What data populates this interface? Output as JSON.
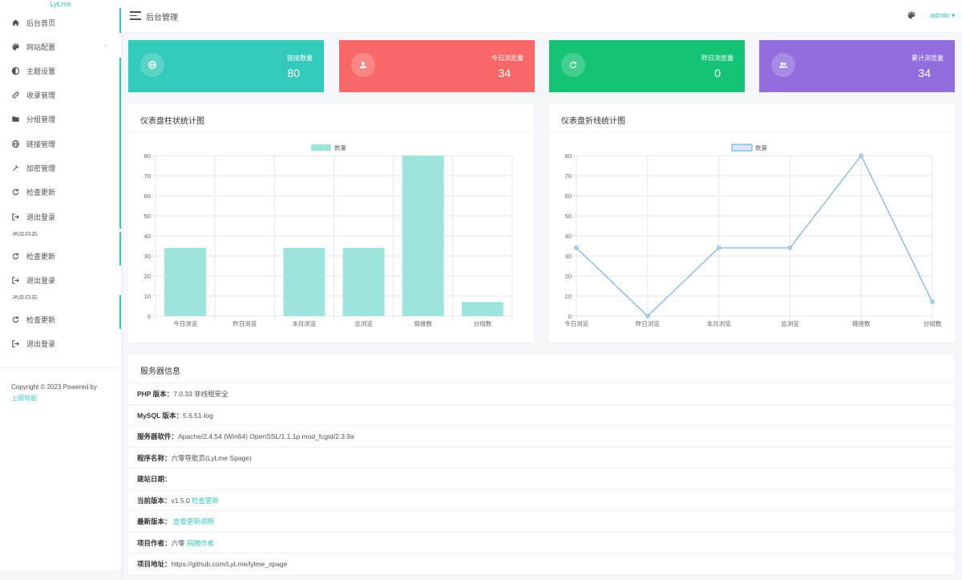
{
  "sidebar": {
    "logo": "LyLme",
    "items": [
      {
        "label": "后台首页",
        "icon": "home-icon"
      },
      {
        "label": "网站配置",
        "icon": "palette-icon",
        "caret": "›"
      },
      {
        "label": "主题设置",
        "icon": "contrast-icon"
      },
      {
        "label": "收录管理",
        "icon": "link-icon"
      },
      {
        "label": "分组管理",
        "icon": "folder-icon"
      },
      {
        "label": "链接管理",
        "icon": "globe-icon"
      },
      {
        "label": "加密管理",
        "icon": "wrench-icon"
      },
      {
        "label": "检查更新",
        "icon": "refresh-icon"
      },
      {
        "label": "退出登录",
        "icon": "logout-icon"
      },
      {
        "label": "检查更新",
        "icon": "refresh-icon"
      },
      {
        "label": "退出登录",
        "icon": "logout-icon"
      },
      {
        "label": "检查更新",
        "icon": "refresh-icon"
      },
      {
        "label": "退出登录",
        "icon": "logout-icon"
      }
    ],
    "copyright_text": "Copyright © 2023 Powered by",
    "copyright_link": "上网导航"
  },
  "header": {
    "title": "后台管理",
    "user": "admin ▾"
  },
  "stats": [
    {
      "label": "链接数量",
      "value": "80",
      "color": "#33cabb",
      "icon": "globe-icon"
    },
    {
      "label": "今日浏览量",
      "value": "34",
      "color": "#f96868",
      "icon": "user-icon"
    },
    {
      "label": "昨日浏览量",
      "value": "0",
      "color": "#15c377",
      "icon": "refresh-icon"
    },
    {
      "label": "累计浏览量",
      "value": "34",
      "color": "#926dde",
      "icon": "users-icon"
    }
  ],
  "bar_card": {
    "title": "仪表盘柱状统计图"
  },
  "line_card": {
    "title": "仪表盘折线统计图"
  },
  "chart_data": [
    {
      "type": "bar",
      "legend": "数量",
      "categories": [
        "今日浏览",
        "昨日浏览",
        "本月浏览",
        "总浏览",
        "链接数",
        "分组数"
      ],
      "values": [
        34,
        0,
        34,
        34,
        80,
        7
      ],
      "ylim": [
        0,
        80
      ],
      "yticks": [
        0,
        10,
        20,
        30,
        40,
        50,
        60,
        70,
        80
      ],
      "color": "#9de4dd"
    },
    {
      "type": "line",
      "legend": "数量",
      "categories": [
        "今日浏览",
        "昨日浏览",
        "本月浏览",
        "总浏览",
        "链接数",
        "分组数"
      ],
      "values": [
        34,
        0,
        34,
        34,
        80,
        7
      ],
      "ylim": [
        0,
        80
      ],
      "yticks": [
        0,
        10,
        20,
        30,
        40,
        50,
        60,
        70,
        80
      ],
      "color": "#5fa4e0"
    }
  ],
  "server": {
    "title": "服务器信息",
    "rows": [
      {
        "label": "PHP 版本：",
        "value": "7.0.33 非线程安全",
        "link": ""
      },
      {
        "label": "MySQL 版本：",
        "value": "5.6.51-log",
        "link": ""
      },
      {
        "label": "服务器软件：",
        "value": "Apache/2.4.54 (Win64) OpenSSL/1.1.1p mod_fcgid/2.3.9a",
        "link": ""
      },
      {
        "label": "程序名称：",
        "value": "六零导航页(LyLme Spage)",
        "link": ""
      },
      {
        "label": "建站日期：",
        "value": "",
        "link": ""
      },
      {
        "label": "当前版本：",
        "value": "v1.5.0 ",
        "link": "检查更新"
      },
      {
        "label": "最新版本：",
        "value": " ",
        "link": "查看更新说明"
      },
      {
        "label": "项目作者：",
        "value": "六零 ",
        "link": "捐赠作者"
      },
      {
        "label": "项目地址：",
        "value": "https://github.com/LyLme/lylme_spage",
        "link": ""
      }
    ]
  }
}
